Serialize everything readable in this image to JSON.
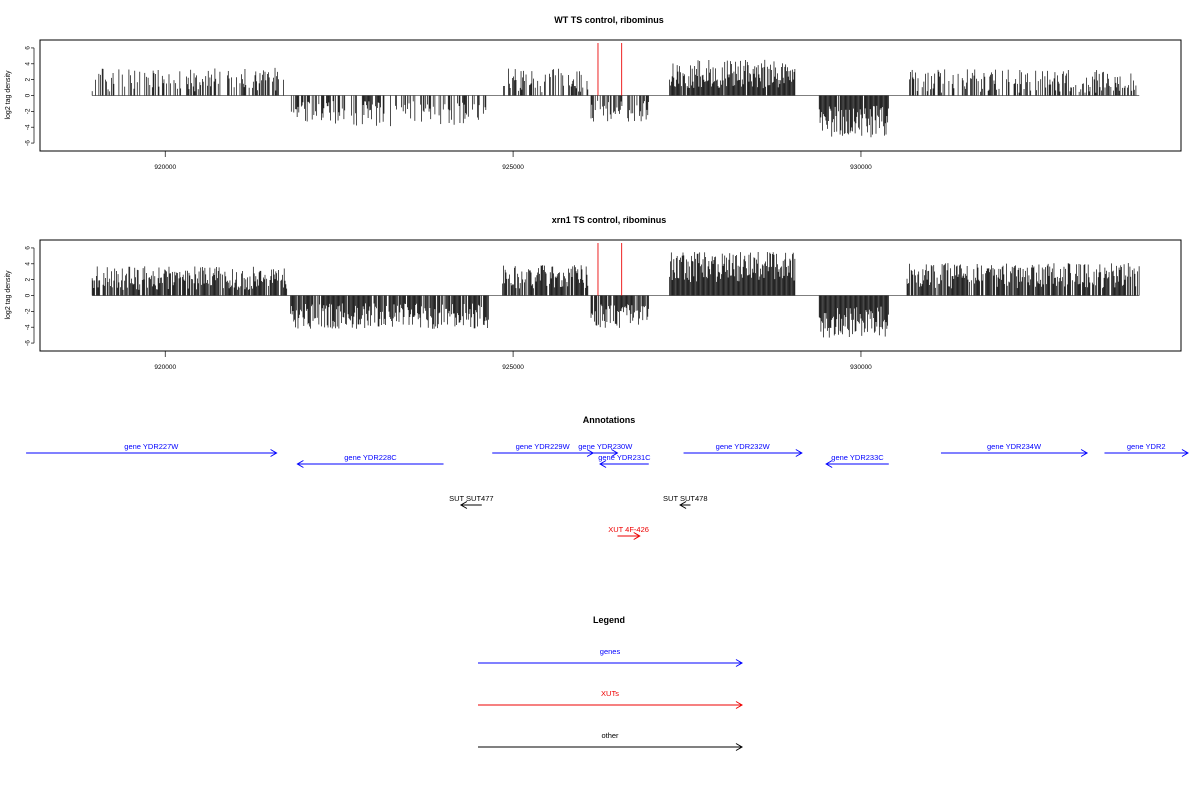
{
  "chart_data": [
    {
      "type": "bar",
      "title": "WT TS control, ribominus",
      "ylabel": "log2 tag density",
      "xlim": [
        918200,
        934600
      ],
      "ylim": [
        -7,
        7
      ],
      "x_ticks": [
        920000,
        925000,
        930000
      ],
      "y_ticks": [
        6,
        4,
        2,
        0,
        -2,
        -4,
        -6
      ],
      "grid": false,
      "markers": {
        "color": "#ee2222",
        "x": [
          926220,
          926560
        ]
      },
      "segments": [
        {
          "start": 918950,
          "end": 921750,
          "mean": 2.0,
          "amp": 1.5,
          "density": 0.45
        },
        {
          "start": 921800,
          "end": 924650,
          "mean": -2.3,
          "amp": 1.6,
          "density": 0.5
        },
        {
          "start": 924850,
          "end": 926080,
          "mean": 1.9,
          "amp": 1.5,
          "density": 0.55
        },
        {
          "start": 926120,
          "end": 926950,
          "mean": -2.0,
          "amp": 1.4,
          "density": 0.55
        },
        {
          "start": 927250,
          "end": 929050,
          "mean": 2.7,
          "amp": 1.8,
          "density": 0.95
        },
        {
          "start": 929400,
          "end": 930400,
          "mean": -3.3,
          "amp": 2.0,
          "density": 0.95
        },
        {
          "start": 930700,
          "end": 934000,
          "mean": 1.8,
          "amp": 1.5,
          "density": 0.5
        }
      ]
    },
    {
      "type": "bar",
      "title": "xrn1 TS control, ribominus",
      "ylabel": "log2 tag density",
      "xlim": [
        918200,
        934600
      ],
      "ylim": [
        -7,
        7
      ],
      "x_ticks": [
        920000,
        925000,
        930000
      ],
      "y_ticks": [
        6,
        4,
        2,
        0,
        -2,
        -4,
        -6
      ],
      "grid": false,
      "markers": {
        "color": "#ee2222",
        "x": [
          926220,
          926560
        ]
      },
      "segments": [
        {
          "start": 918950,
          "end": 921750,
          "mean": 2.2,
          "amp": 1.5,
          "density": 0.85
        },
        {
          "start": 921800,
          "end": 924650,
          "mean": -2.6,
          "amp": 1.6,
          "density": 0.9
        },
        {
          "start": 924850,
          "end": 926080,
          "mean": 2.4,
          "amp": 1.6,
          "density": 0.85
        },
        {
          "start": 926120,
          "end": 926950,
          "mean": -2.6,
          "amp": 1.5,
          "density": 0.9
        },
        {
          "start": 927250,
          "end": 929050,
          "mean": 3.6,
          "amp": 1.9,
          "density": 1.0
        },
        {
          "start": 929400,
          "end": 930400,
          "mean": -3.4,
          "amp": 2.0,
          "density": 1.0
        },
        {
          "start": 930650,
          "end": 934000,
          "mean": 2.5,
          "amp": 1.6,
          "density": 0.85
        }
      ]
    }
  ],
  "annotations": {
    "title": "Annotations",
    "xlim": [
      918200,
      934600
    ],
    "features": [
      {
        "label": "gene YDR227W",
        "start": 918000,
        "end": 921600,
        "strand": "+",
        "row": 0,
        "color": "#0000ff"
      },
      {
        "label": "gene YDR228C",
        "start": 921900,
        "end": 924000,
        "strand": "-",
        "row": 1,
        "color": "#0000ff"
      },
      {
        "label": "gene YDR229W",
        "start": 924700,
        "end": 926150,
        "strand": "+",
        "row": 0,
        "color": "#0000ff"
      },
      {
        "label": "gene YDR230W",
        "start": 926150,
        "end": 926500,
        "strand": "+",
        "row": 0,
        "color": "#0000ff"
      },
      {
        "label": "gene YDR231C",
        "start": 926250,
        "end": 926950,
        "strand": "-",
        "row": 1,
        "color": "#0000ff"
      },
      {
        "label": "gene YDR232W",
        "start": 927450,
        "end": 929150,
        "strand": "+",
        "row": 0,
        "color": "#0000ff"
      },
      {
        "label": "gene YDR233C",
        "start": 929500,
        "end": 930400,
        "strand": "-",
        "row": 1,
        "color": "#0000ff"
      },
      {
        "label": "gene YDR234W",
        "start": 931150,
        "end": 933250,
        "strand": "+",
        "row": 0,
        "color": "#0000ff"
      },
      {
        "label": "gene YDR2",
        "start": 933500,
        "end": 934700,
        "strand": "+",
        "row": 0,
        "color": "#0000ff"
      },
      {
        "label": "SUT SUT477",
        "start": 924250,
        "end": 924550,
        "strand": "-",
        "row": 2,
        "color": "#000000"
      },
      {
        "label": "SUT SUT478",
        "start": 927400,
        "end": 927550,
        "strand": "-",
        "row": 2,
        "color": "#000000"
      },
      {
        "label": "XUT 4F-426",
        "start": 926500,
        "end": 926820,
        "strand": "+",
        "row": 3,
        "color": "#ee0000"
      }
    ]
  },
  "legend": {
    "title": "Legend",
    "items": [
      {
        "label": "genes",
        "color": "#0000ff"
      },
      {
        "label": "XUTs",
        "color": "#ee0000"
      },
      {
        "label": "other",
        "color": "#000000"
      }
    ]
  }
}
